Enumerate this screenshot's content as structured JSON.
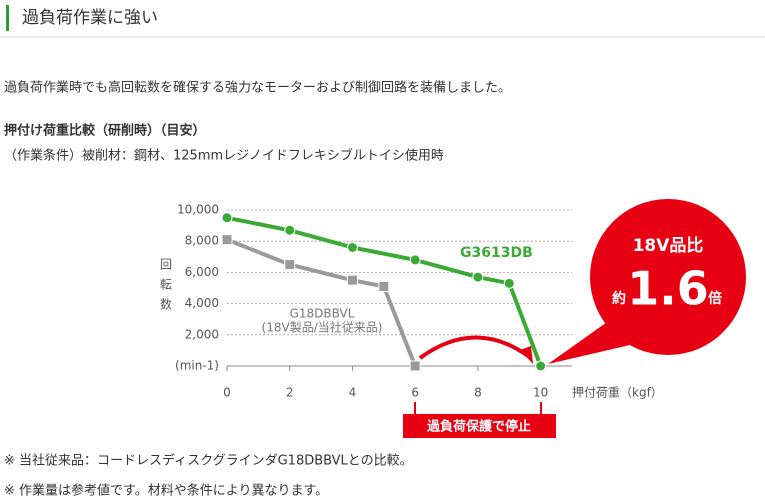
{
  "header": {
    "title": "過負荷作業に強い"
  },
  "intro": "過負荷作業時でも高回転数を確保する強力なモーターおよび制御回路を装備しました。",
  "section": {
    "title": "押付け荷重比較（研削時）（目安）",
    "conditions": "（作業条件）被削材：鋼材、125mmレジノイドフレキシブルトイシ使用時"
  },
  "chart_data": {
    "type": "line",
    "ylabel": "回転数",
    "xlabel": "押付荷重（kgf）",
    "xlim": [
      0,
      11
    ],
    "xticks": [
      0,
      2,
      4,
      6,
      8,
      10
    ],
    "ylim": [
      0,
      10000
    ],
    "yticks": [
      {
        "value": 0,
        "label": "(min-1)"
      },
      {
        "value": 2000,
        "label": "2,000"
      },
      {
        "value": 4000,
        "label": "4,000"
      },
      {
        "value": 6000,
        "label": "6,000"
      },
      {
        "value": 8000,
        "label": "8,000"
      },
      {
        "value": 10000,
        "label": "10,000"
      }
    ],
    "grid": true,
    "series": [
      {
        "name": "G3613DB",
        "color": "#3aaa35",
        "marker": "circle",
        "x": [
          0,
          2,
          4,
          6,
          8,
          9,
          10
        ],
        "values": [
          9500,
          8700,
          7600,
          6800,
          5700,
          5300,
          0
        ]
      },
      {
        "name": "G18DBBVL",
        "note": "(18V製品/当社従来品)",
        "color": "#9a9a9a",
        "marker": "square",
        "x": [
          0,
          2,
          4,
          5,
          6
        ],
        "values": [
          8100,
          6500,
          5500,
          5100,
          0
        ]
      }
    ],
    "annotations": {
      "stop": "過負荷保護で停止",
      "bubble": {
        "line1": "18V品比",
        "prefix": "約",
        "value": 1.6,
        "suffix": "倍"
      }
    }
  },
  "footnotes": [
    "※ 当社従来品：コードレスディスクグラインダG18DBBVLとの比較。",
    "※ 作業量は参考値です。材料や条件により異なります。"
  ]
}
